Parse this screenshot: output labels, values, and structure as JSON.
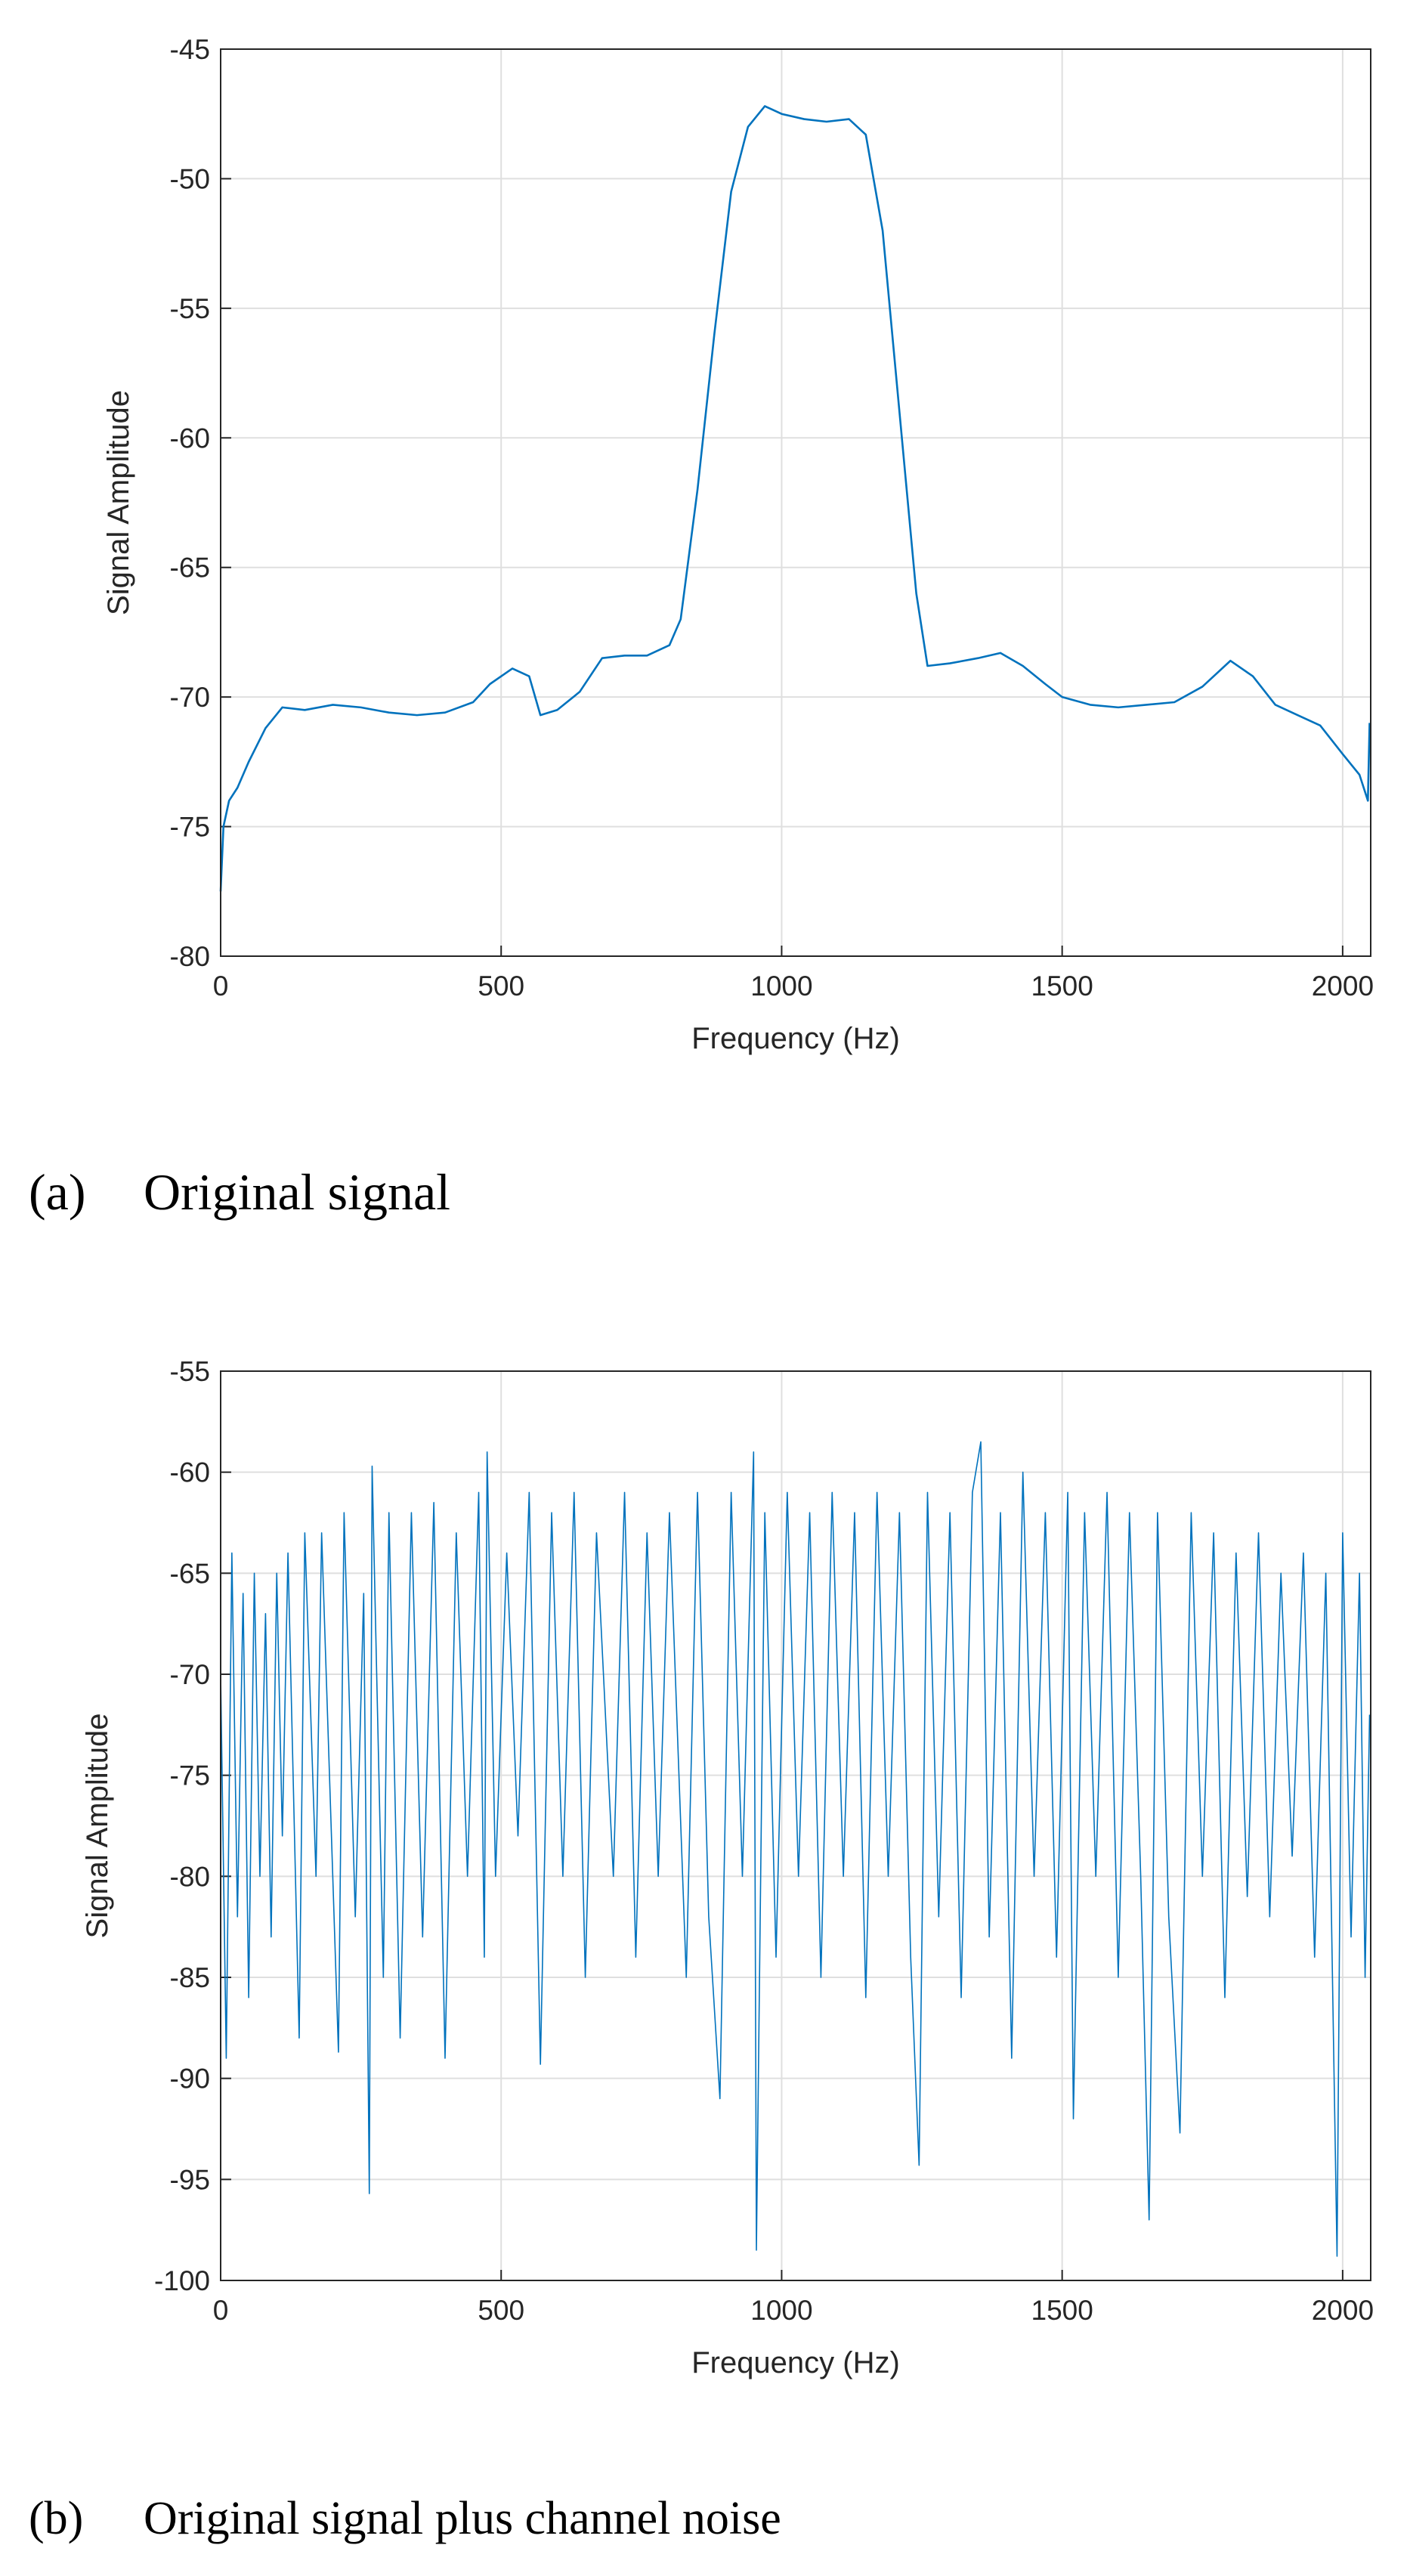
{
  "chart_data": [
    {
      "type": "line",
      "caption_label": "(a)",
      "caption": "Original signal",
      "xlabel": "Frequency (Hz)",
      "ylabel": "Signal Amplitude",
      "xlim": [
        0,
        2050
      ],
      "ylim": [
        -80,
        -45
      ],
      "xticks": [
        0,
        500,
        1000,
        1500,
        2000
      ],
      "yticks": [
        -80,
        -75,
        -70,
        -65,
        -60,
        -55,
        -50,
        -45
      ],
      "grid": true,
      "x": [
        0,
        5,
        15,
        30,
        50,
        80,
        110,
        150,
        200,
        250,
        300,
        350,
        400,
        450,
        480,
        520,
        550,
        570,
        600,
        640,
        680,
        720,
        760,
        800,
        820,
        850,
        880,
        910,
        940,
        970,
        1000,
        1040,
        1080,
        1120,
        1150,
        1180,
        1210,
        1240,
        1260,
        1300,
        1350,
        1390,
        1430,
        1470,
        1500,
        1550,
        1600,
        1650,
        1700,
        1750,
        1800,
        1840,
        1880,
        1920,
        1960,
        2000,
        2030,
        2045,
        2048
      ],
      "series": [
        {
          "color": "#0072bd",
          "values": [
            -77.5,
            -75,
            -74,
            -73.5,
            -72.5,
            -71.2,
            -70.4,
            -70.5,
            -70.3,
            -70.4,
            -70.6,
            -70.7,
            -70.6,
            -70.2,
            -69.5,
            -68.9,
            -69.2,
            -70.7,
            -70.5,
            -69.8,
            -68.5,
            -68.4,
            -68.4,
            -68,
            -67,
            -62,
            -56,
            -50.5,
            -48,
            -47.2,
            -47.5,
            -47.7,
            -47.8,
            -47.7,
            -48.3,
            -52,
            -59,
            -66,
            -68.8,
            -68.7,
            -68.5,
            -68.3,
            -68.8,
            -69.5,
            -70,
            -70.3,
            -70.4,
            -70.3,
            -70.2,
            -69.6,
            -68.6,
            -69.2,
            -70.3,
            -70.7,
            -71.1,
            -72.2,
            -73,
            -74,
            -71
          ]
        }
      ]
    },
    {
      "type": "line",
      "caption_label": "(b)",
      "caption": "Original signal plus channel noise",
      "xlabel": "Frequency (Hz)",
      "ylabel": "Signal Amplitude",
      "xlim": [
        0,
        2050
      ],
      "ylim": [
        -100,
        -55
      ],
      "xticks": [
        0,
        500,
        1000,
        1500,
        2000
      ],
      "yticks": [
        -100,
        -95,
        -90,
        -85,
        -80,
        -75,
        -70,
        -65,
        -60,
        -55
      ],
      "grid": true,
      "x": [
        0,
        10,
        20,
        30,
        40,
        50,
        60,
        70,
        80,
        90,
        100,
        110,
        120,
        140,
        150,
        170,
        180,
        210,
        220,
        240,
        255,
        265,
        270,
        290,
        300,
        320,
        340,
        360,
        380,
        400,
        420,
        440,
        460,
        470,
        475,
        490,
        510,
        530,
        550,
        570,
        590,
        610,
        630,
        650,
        670,
        700,
        720,
        740,
        760,
        780,
        800,
        830,
        850,
        870,
        890,
        910,
        930,
        950,
        955,
        970,
        990,
        1010,
        1030,
        1050,
        1070,
        1090,
        1110,
        1130,
        1150,
        1170,
        1190,
        1210,
        1230,
        1245,
        1260,
        1280,
        1300,
        1320,
        1340,
        1355,
        1370,
        1390,
        1410,
        1430,
        1450,
        1470,
        1490,
        1510,
        1520,
        1540,
        1560,
        1580,
        1600,
        1620,
        1640,
        1655,
        1670,
        1690,
        1710,
        1730,
        1750,
        1770,
        1790,
        1810,
        1830,
        1850,
        1870,
        1890,
        1910,
        1930,
        1950,
        1970,
        1990,
        2000,
        2015,
        2030,
        2040,
        2048
      ],
      "series": [
        {
          "color": "#0072bd",
          "values": [
            -70,
            -89,
            -64,
            -82,
            -66,
            -86,
            -65,
            -80,
            -67,
            -83,
            -65,
            -78,
            -64,
            -88,
            -63,
            -80,
            -63,
            -88.7,
            -62,
            -82,
            -66,
            -95.7,
            -59.7,
            -85,
            -62,
            -88,
            -62,
            -83,
            -61.5,
            -89,
            -63,
            -80,
            -61,
            -84,
            -59,
            -80,
            -64,
            -78,
            -61,
            -89.3,
            -62,
            -80,
            -61,
            -85,
            -63,
            -80,
            -61,
            -84,
            -63,
            -80,
            -62,
            -85,
            -61,
            -82,
            -91,
            -61,
            -80,
            -59,
            -98.5,
            -62,
            -84,
            -61,
            -80,
            -62,
            -85,
            -61,
            -80,
            -62,
            -86,
            -61,
            -80,
            -62,
            -84,
            -94.3,
            -61,
            -82,
            -62,
            -86,
            -61,
            -58.5,
            -83,
            -62,
            -89,
            -60,
            -80,
            -62,
            -84,
            -61,
            -92,
            -62,
            -80,
            -61,
            -85,
            -62,
            -80,
            -97,
            -62,
            -82,
            -92.7,
            -62,
            -80,
            -63,
            -86,
            -64,
            -81,
            -63,
            -82,
            -65,
            -79,
            -64,
            -84,
            -65,
            -98.8,
            -63,
            -83,
            -65,
            -85,
            -72
          ]
        }
      ]
    }
  ]
}
